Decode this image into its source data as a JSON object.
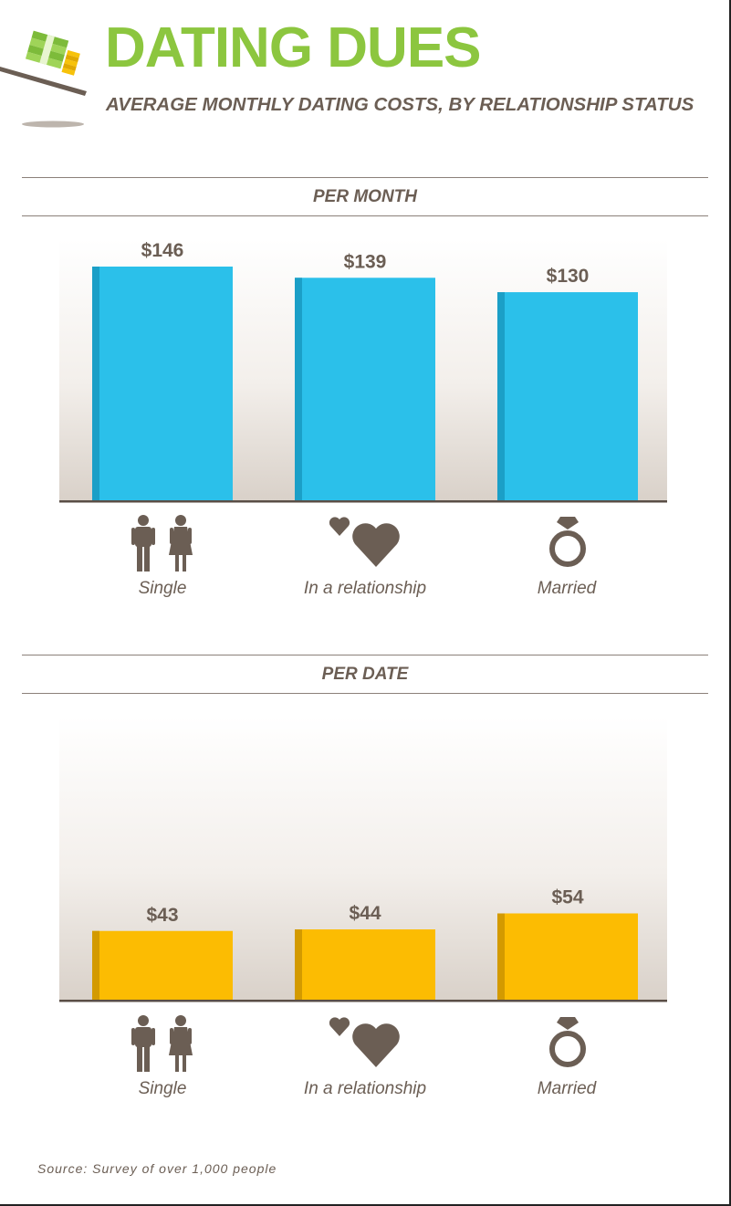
{
  "header": {
    "title": "DATING DUES",
    "subtitle": "AVERAGE MONTHLY DATING COSTS, BY RELATIONSHIP STATUS",
    "icon": "money-stack-on-scale-icon"
  },
  "colors": {
    "title": "#8cc63f",
    "text": "#6b5e54",
    "bar_month": "#2bc0ea",
    "bar_month_edge": "#1b9fc7",
    "bar_date": "#fcbc02",
    "bar_date_edge": "#d39a00"
  },
  "categories": [
    {
      "label": "Single",
      "icon": "man-and-woman-icon"
    },
    {
      "label": "In a relationship",
      "icon": "two-hearts-icon"
    },
    {
      "label": "Married",
      "icon": "diamond-ring-icon"
    }
  ],
  "chart_data": [
    {
      "type": "bar",
      "title": "PER MONTH",
      "categories": [
        "Single",
        "In a relationship",
        "Married"
      ],
      "values": [
        146,
        139,
        130
      ],
      "value_labels": [
        "$146",
        "$139",
        "$130"
      ],
      "ylim": [
        0,
        170
      ],
      "grid": false
    },
    {
      "type": "bar",
      "title": "PER DATE",
      "categories": [
        "Single",
        "In a relationship",
        "Married"
      ],
      "values": [
        43,
        44,
        54
      ],
      "value_labels": [
        "$43",
        "$44",
        "$54"
      ],
      "ylim": [
        0,
        170
      ],
      "grid": false
    }
  ],
  "source": "Source: Survey of over 1,000 people"
}
